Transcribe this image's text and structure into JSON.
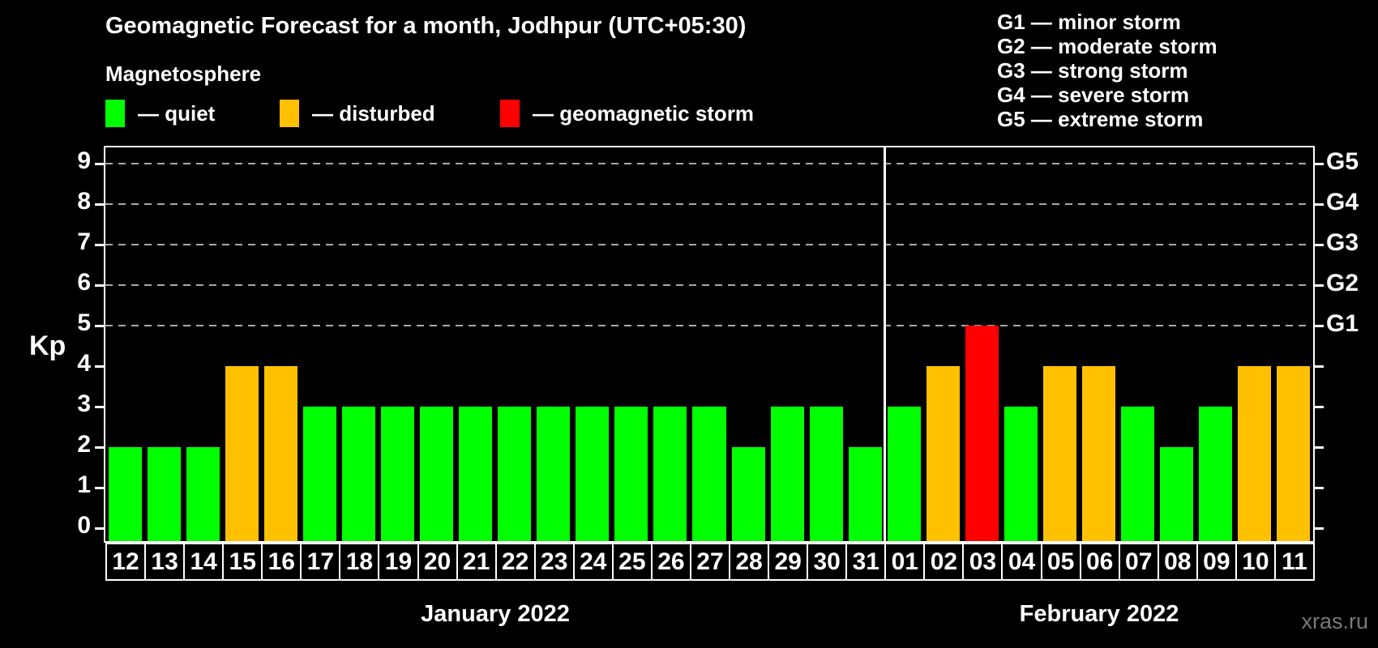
{
  "page": {
    "watermark": "xras.ru",
    "background": "#000000"
  },
  "header": {
    "title": "Geomagnetic Forecast for a month, Jodhpur (UTC+05:30)",
    "subtitle": "Magnetosphere",
    "legend": [
      {
        "key": "quiet",
        "label": "— quiet",
        "color": "#00ff00"
      },
      {
        "key": "disturbed",
        "label": "— disturbed",
        "color": "#ffc000"
      },
      {
        "key": "storm",
        "label": "— geomagnetic storm",
        "color": "#ff0000"
      }
    ],
    "storm_scale": [
      "G1 — minor storm",
      "G2 — moderate storm",
      "G3 — strong storm",
      "G4 — severe storm",
      "G5 — extreme storm"
    ]
  },
  "chart_data": {
    "type": "bar",
    "title": "Geomagnetic Forecast for a month, Jodhpur (UTC+05:30)",
    "ylabel": "Kp",
    "ylim": [
      0,
      9
    ],
    "yticks": [
      0,
      1,
      2,
      3,
      4,
      5,
      6,
      7,
      8,
      9
    ],
    "gridlines_at_kp": [
      5,
      6,
      7,
      8,
      9
    ],
    "grid_style": "dashed gray, horizontal only",
    "right_axis": [
      {
        "kp": 5,
        "label": "G1"
      },
      {
        "kp": 6,
        "label": "G2"
      },
      {
        "kp": 7,
        "label": "G3"
      },
      {
        "kp": 8,
        "label": "G4"
      },
      {
        "kp": 9,
        "label": "G5"
      }
    ],
    "colors": {
      "quiet": "#00ff00",
      "disturbed": "#ffc000",
      "storm": "#ff0000"
    },
    "color_rule": {
      "quiet_max_kp": 3,
      "disturbed_kp": 4,
      "storm_min_kp": 5
    },
    "months": [
      {
        "label": "January 2022",
        "categories": [
          "12",
          "13",
          "14",
          "15",
          "16",
          "17",
          "18",
          "19",
          "20",
          "21",
          "22",
          "23",
          "24",
          "25",
          "26",
          "27",
          "28",
          "29",
          "30",
          "31"
        ],
        "values": [
          2,
          2,
          2,
          4,
          4,
          3,
          3,
          3,
          3,
          3,
          3,
          3,
          3,
          3,
          3,
          3,
          2,
          3,
          3,
          2
        ]
      },
      {
        "label": "February 2022",
        "categories": [
          "01",
          "02",
          "03",
          "04",
          "05",
          "06",
          "07",
          "08",
          "09",
          "10",
          "11"
        ],
        "values": [
          3,
          4,
          5,
          3,
          4,
          4,
          3,
          2,
          3,
          4,
          4
        ]
      }
    ]
  }
}
